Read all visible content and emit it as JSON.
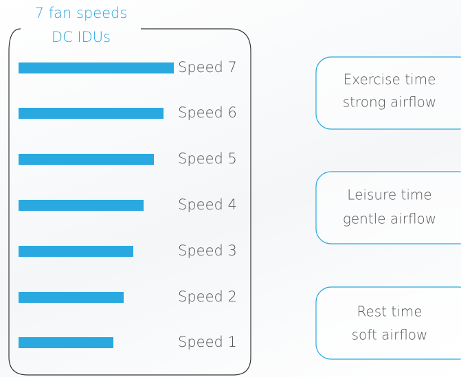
{
  "title": {
    "line1": "7 fan speeds",
    "line2": "DC IDUs"
  },
  "speeds": [
    "Speed 7",
    "Speed 6",
    "Speed 5",
    "Speed 4",
    "Speed 3",
    "Speed 2",
    "Speed 1"
  ],
  "modes": [
    {
      "line1": "Exercise time",
      "line2": "strong airflow"
    },
    {
      "line1": "Leisure time",
      "line2": "gentle airflow"
    },
    {
      "line1": "Rest time",
      "line2": "soft airflow"
    }
  ]
}
